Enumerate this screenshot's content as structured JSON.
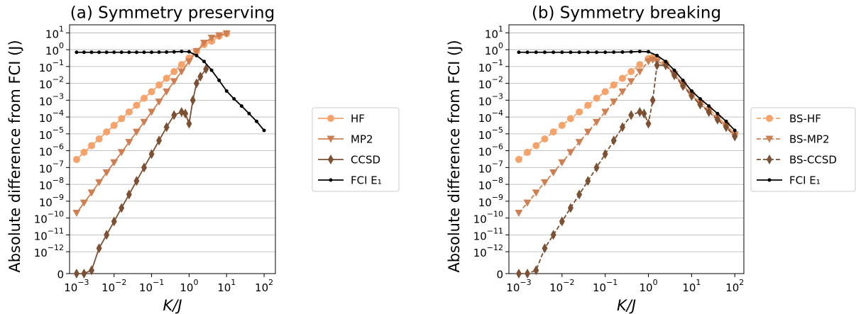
{
  "chart_data": [
    {
      "type": "line",
      "title": "(a) Symmetry preserving",
      "xlabel": "K/J",
      "ylabel": "Absolute difference from FCI (J)",
      "xscale": "log",
      "yscale": "symlog",
      "linthresh": 1e-12,
      "linscale": 1.3,
      "xlim": [
        0.00065,
        200
      ],
      "ylim": [
        0,
        30
      ],
      "grid": "y",
      "legend": "outside-right",
      "xticks": [
        {
          "value": 0.001,
          "label": "10−3"
        },
        {
          "value": 0.01,
          "label": "10−2"
        },
        {
          "value": 0.1,
          "label": "10−1"
        },
        {
          "value": 1,
          "label": "100"
        },
        {
          "value": 10,
          "label": "101"
        },
        {
          "value": 100,
          "label": "102"
        }
      ],
      "yticks": [
        0,
        {
          "value": 1e-12,
          "label": "10−12"
        },
        {
          "value": 1e-11,
          "label": "10−11"
        },
        {
          "value": 1e-10,
          "label": "10−10"
        },
        {
          "value": 1e-09,
          "label": "10−9"
        },
        {
          "value": 1e-08,
          "label": "10−8"
        },
        {
          "value": 1e-07,
          "label": "10−7"
        },
        {
          "value": 1e-06,
          "label": "10−6"
        },
        {
          "value": 1e-05,
          "label": "10−5"
        },
        {
          "value": 0.0001,
          "label": "10−4"
        },
        {
          "value": 0.001,
          "label": "10−3"
        },
        {
          "value": 0.01,
          "label": "10−2"
        },
        {
          "value": 0.1,
          "label": "10−1"
        },
        {
          "value": 1,
          "label": "100"
        },
        {
          "value": 10,
          "label": "101"
        }
      ],
      "series": [
        {
          "name": "HF",
          "color": "#f5a26b",
          "marker": "o",
          "linestyle": "solid",
          "x": [
            0.001,
            0.00158,
            0.00251,
            0.00398,
            0.00631,
            0.01,
            0.0158,
            0.0251,
            0.0398,
            0.0631,
            0.1,
            0.158,
            0.251,
            0.398,
            0.631,
            1,
            1.58,
            2.51,
            3.98,
            6.31,
            10
          ],
          "values": [
            3e-07,
            8e-07,
            2e-06,
            5e-06,
            1.3e-05,
            3.2e-05,
            8e-05,
            0.0002,
            0.0005,
            0.0013,
            0.0032,
            0.008,
            0.02,
            0.05,
            0.13,
            0.32,
            0.8,
            2,
            3.2,
            6.3,
            9
          ]
        },
        {
          "name": "MP2",
          "color": "#cd7f52",
          "marker": "v",
          "linestyle": "solid",
          "x": [
            0.001,
            0.00158,
            0.00251,
            0.00398,
            0.00631,
            0.01,
            0.0158,
            0.0251,
            0.0398,
            0.0631,
            0.1,
            0.158,
            0.251,
            0.398,
            0.631,
            1,
            1.58,
            2.51,
            3.98,
            6.31,
            10
          ],
          "values": [
            2e-10,
            8e-10,
            3.2e-09,
            1.3e-08,
            5e-08,
            2e-07,
            8e-07,
            3.2e-06,
            1.3e-05,
            5e-05,
            0.0002,
            0.0008,
            0.0032,
            0.013,
            0.05,
            0.2,
            0.8,
            2.5,
            5,
            7,
            9
          ]
        },
        {
          "name": "CCSD",
          "color": "#7b5033",
          "marker": "d",
          "linestyle": "solid",
          "x": [
            0.001,
            0.00158,
            0.00251,
            0.00398,
            0.00631,
            0.01,
            0.0158,
            0.0251,
            0.0398,
            0.0631,
            0.1,
            0.158,
            0.251,
            0.398,
            0.631,
            0.794,
            1,
            1.26,
            1.58,
            2,
            2.82
          ],
          "values": [
            0,
            0,
            1.5e-13,
            1.6e-12,
            1e-11,
            6.3e-11,
            4e-10,
            2.5e-09,
            1.6e-08,
            1e-07,
            6.3e-07,
            4e-06,
            2.5e-05,
            0.00013,
            0.0002,
            0.00016,
            4e-05,
            0.001,
            0.01,
            0.025,
            0.07
          ]
        },
        {
          "name": "FCI E₁",
          "color": "#000000",
          "marker": ".",
          "linestyle": "solid",
          "x": [
            0.001,
            0.00158,
            0.00251,
            0.00398,
            0.00631,
            0.01,
            0.0158,
            0.0251,
            0.0398,
            0.0631,
            0.1,
            0.158,
            0.251,
            0.398,
            0.631,
            1,
            1.58,
            2.51,
            3.98,
            6.31,
            10,
            15.8,
            25.1,
            39.8,
            63.1,
            100
          ],
          "values": [
            0.7,
            0.7,
            0.7,
            0.7,
            0.7,
            0.7,
            0.7,
            0.7,
            0.7,
            0.7,
            0.7,
            0.71,
            0.72,
            0.74,
            0.78,
            0.75,
            0.45,
            0.2,
            0.06,
            0.015,
            0.0035,
            0.0012,
            0.00045,
            0.00016,
            5.5e-05,
            1.6e-05
          ]
        }
      ]
    },
    {
      "type": "line",
      "title": "(b) Symmetry breaking",
      "xlabel": "K/J",
      "ylabel": "Absolute difference from FCI (J)",
      "xscale": "log",
      "yscale": "symlog",
      "linthresh": 1e-12,
      "linscale": 1.3,
      "xlim": [
        0.00059,
        162
      ],
      "ylim": [
        0,
        30
      ],
      "grid": "y",
      "legend": "outside-right",
      "xticks": [
        {
          "value": 0.001,
          "label": "10−3"
        },
        {
          "value": 0.01,
          "label": "10−2"
        },
        {
          "value": 0.1,
          "label": "10−1"
        },
        {
          "value": 1,
          "label": "100"
        },
        {
          "value": 10,
          "label": "101"
        },
        {
          "value": 100,
          "label": "102"
        }
      ],
      "yticks": [
        0,
        {
          "value": 1e-12,
          "label": "10−12"
        },
        {
          "value": 1e-11,
          "label": "10−11"
        },
        {
          "value": 1e-10,
          "label": "10−10"
        },
        {
          "value": 1e-09,
          "label": "10−9"
        },
        {
          "value": 1e-08,
          "label": "10−8"
        },
        {
          "value": 1e-07,
          "label": "10−7"
        },
        {
          "value": 1e-06,
          "label": "10−6"
        },
        {
          "value": 1e-05,
          "label": "10−5"
        },
        {
          "value": 0.0001,
          "label": "10−4"
        },
        {
          "value": 0.001,
          "label": "10−3"
        },
        {
          "value": 0.01,
          "label": "10−2"
        },
        {
          "value": 0.1,
          "label": "10−1"
        },
        {
          "value": 1,
          "label": "100"
        },
        {
          "value": 10,
          "label": "101"
        }
      ],
      "series": [
        {
          "name": "BS-HF",
          "color": "#f5a26b",
          "marker": "o",
          "linestyle": "dashed",
          "x": [
            0.001,
            0.00158,
            0.00251,
            0.00398,
            0.00631,
            0.01,
            0.0158,
            0.0251,
            0.0398,
            0.0631,
            0.1,
            0.158,
            0.251,
            0.398,
            0.631,
            1,
            1.26,
            1.58,
            2.51,
            3.98,
            6.31,
            10,
            15.8,
            25.1,
            39.8,
            63.1,
            100
          ],
          "values": [
            3e-07,
            8e-07,
            2e-06,
            5e-06,
            1.3e-05,
            3.2e-05,
            8e-05,
            0.0002,
            0.0005,
            0.0013,
            0.0032,
            0.008,
            0.02,
            0.05,
            0.13,
            0.3,
            0.35,
            0.3,
            0.15,
            0.04,
            0.01,
            0.0025,
            0.0008,
            0.0003,
            0.0001,
            3.5e-05,
            1e-05
          ]
        },
        {
          "name": "BS-MP2",
          "color": "#cd7f52",
          "marker": "v",
          "linestyle": "dashed",
          "x": [
            0.001,
            0.00158,
            0.00251,
            0.00398,
            0.00631,
            0.01,
            0.0158,
            0.0251,
            0.0398,
            0.0631,
            0.1,
            0.158,
            0.251,
            0.398,
            0.631,
            1,
            1.26,
            1.58,
            2.51,
            3.98,
            6.31,
            10,
            15.8,
            25.1,
            39.8,
            63.1,
            100
          ],
          "values": [
            2e-10,
            8e-10,
            3.2e-09,
            1.3e-08,
            5e-08,
            2e-07,
            8e-07,
            3.2e-06,
            1.3e-05,
            5e-05,
            0.0002,
            0.0008,
            0.0032,
            0.013,
            0.05,
            0.2,
            0.25,
            0.2,
            0.13,
            0.035,
            0.008,
            0.002,
            0.0006,
            0.00022,
            8e-05,
            3e-05,
            9e-06
          ]
        },
        {
          "name": "BS-CCSD",
          "color": "#7b5033",
          "marker": "d",
          "linestyle": "dashed",
          "x": [
            0.001,
            0.00158,
            0.00251,
            0.00398,
            0.00631,
            0.01,
            0.0158,
            0.0251,
            0.0398,
            0.0631,
            0.1,
            0.158,
            0.251,
            0.398,
            0.631,
            0.794,
            1,
            1.26,
            1.58,
            2.51,
            3.98,
            6.31,
            10,
            15.8,
            25.1,
            39.8,
            63.1,
            100
          ],
          "values": [
            0,
            0,
            1.5e-13,
            1.6e-12,
            1e-11,
            6.3e-11,
            4e-10,
            2.5e-09,
            1.6e-08,
            1e-07,
            6.3e-07,
            4e-06,
            2.5e-05,
            0.00013,
            0.0002,
            0.00016,
            4e-05,
            0.001,
            0.12,
            0.12,
            0.03,
            0.007,
            0.0018,
            0.00055,
            0.0002,
            7e-05,
            2.5e-05,
            7e-06
          ]
        },
        {
          "name": "FCI E₁",
          "color": "#000000",
          "marker": ".",
          "linestyle": "solid",
          "x": [
            0.001,
            0.00158,
            0.00251,
            0.00398,
            0.00631,
            0.01,
            0.0158,
            0.0251,
            0.0398,
            0.0631,
            0.1,
            0.158,
            0.251,
            0.398,
            0.631,
            1,
            1.58,
            2.51,
            3.98,
            6.31,
            10,
            15.8,
            25.1,
            39.8,
            63.1,
            100
          ],
          "values": [
            0.7,
            0.7,
            0.7,
            0.7,
            0.7,
            0.7,
            0.7,
            0.7,
            0.7,
            0.7,
            0.7,
            0.71,
            0.72,
            0.74,
            0.78,
            0.75,
            0.45,
            0.2,
            0.06,
            0.015,
            0.0035,
            0.0012,
            0.00045,
            0.00016,
            5.5e-05,
            1.6e-05
          ]
        }
      ]
    }
  ]
}
